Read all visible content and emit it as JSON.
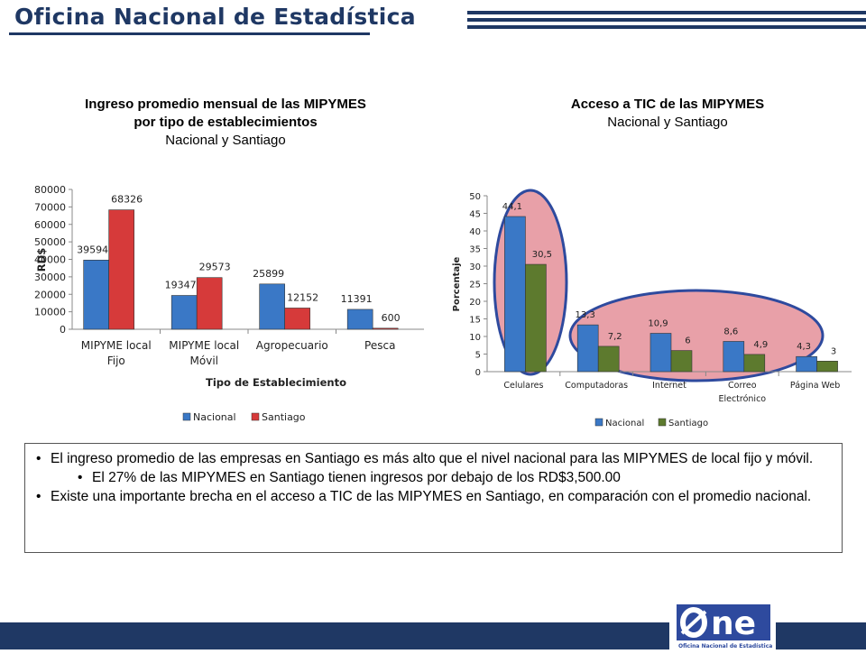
{
  "header": {
    "title": "Oficina Nacional de Estadística"
  },
  "chart1": {
    "title_lines": [
      "Ingreso promedio mensual de las MIPYMES",
      "por tipo de establecimientos"
    ],
    "subtitle": "Nacional y Santiago"
  },
  "chart2": {
    "title_lines": [
      "Acceso a TIC de las MIPYMES"
    ],
    "subtitle": "Nacional y Santiago"
  },
  "chart_data": [
    {
      "type": "bar",
      "title": "Ingreso promedio mensual de las MIPYMES por tipo de establecimientos",
      "subtitle": "Nacional y Santiago",
      "categories": [
        [
          "MIPYME local",
          "Fijo"
        ],
        [
          "MIPYME local",
          "Móvil"
        ],
        [
          "Agropecuario"
        ],
        [
          "Pesca"
        ]
      ],
      "series": [
        {
          "name": "Nacional",
          "values": [
            39594,
            19347,
            25899,
            11391
          ],
          "labels": [
            "39594",
            "19347",
            "25899",
            "11391"
          ],
          "color": "#3a78c6"
        },
        {
          "name": "Santiago",
          "values": [
            68326,
            29573,
            12152,
            600
          ],
          "labels": [
            "68326",
            "29573",
            "12152",
            "600"
          ],
          "color": "#d63a3a"
        }
      ],
      "ylim": [
        0,
        80000
      ],
      "yticks": [
        0,
        10000,
        20000,
        30000,
        40000,
        50000,
        60000,
        70000,
        80000
      ],
      "ytick_labels": [
        "0",
        "10000",
        "20000",
        "30000",
        "40000",
        "50000",
        "60000",
        "70000",
        "80000"
      ],
      "xlabel": "Tipo de Establecimiento",
      "ylabel": "RD$",
      "legend": "bottom",
      "grid": false
    },
    {
      "type": "bar",
      "title": "Acceso a TIC de las MIPYMES",
      "subtitle": "Nacional y Santiago",
      "categories": [
        [
          "Celulares"
        ],
        [
          "Computadoras"
        ],
        [
          "Internet"
        ],
        [
          "Correo",
          "Electrónico"
        ],
        [
          "Página Web"
        ]
      ],
      "series": [
        {
          "name": "Nacional",
          "values": [
            44.1,
            13.3,
            10.9,
            8.6,
            4.3
          ],
          "labels": [
            "44,1",
            "13,3",
            "10,9",
            "8,6",
            "4,3"
          ],
          "color": "#3a78c6"
        },
        {
          "name": "Santiago",
          "values": [
            30.5,
            7.2,
            6,
            4.9,
            3
          ],
          "labels": [
            "30,5",
            "7,2",
            "6",
            "4,9",
            "3"
          ],
          "color": "#5d7a2e"
        }
      ],
      "ylim": [
        0,
        50
      ],
      "yticks": [
        0,
        5,
        10,
        15,
        20,
        25,
        30,
        35,
        40,
        45,
        50
      ],
      "ytick_labels": [
        "0",
        "5",
        "10",
        "15",
        "20",
        "25",
        "30",
        "35",
        "40",
        "45",
        "50"
      ],
      "xlabel": "",
      "ylabel": "Porcentaje",
      "legend": "bottom",
      "grid": false,
      "highlight_color": "#e8a0a8"
    }
  ],
  "bullets": [
    "El ingreso promedio de las empresas en Santiago es más alto que el nivel nacional para las MIPYMES de local fijo y móvil.",
    "El 27% de las MIPYMES en Santiago tienen ingresos por debajo de los RD$3,500.00",
    "Existe una importante brecha en el acceso a TIC de las MIPYMES en Santiago, en comparación con el promedio nacional."
  ],
  "logo": {
    "wordmark": "ne",
    "caption": "Oficina Nacional de Estadística"
  },
  "colors": {
    "brand_navy": "#1f3864",
    "logo_blue": "#2e4a9e"
  }
}
